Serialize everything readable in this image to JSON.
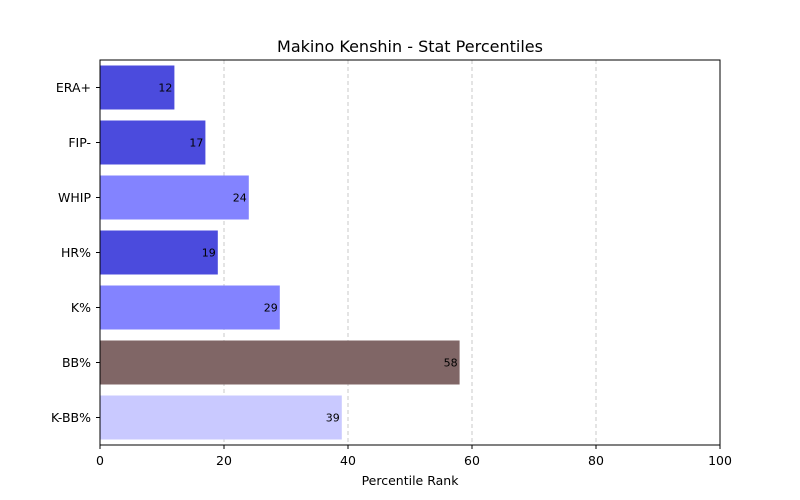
{
  "chart_data": {
    "type": "bar",
    "orientation": "horizontal",
    "title": "Makino Kenshin - Stat Percentiles",
    "xlabel": "Percentile Rank",
    "ylabel": "",
    "xlim": [
      0,
      100
    ],
    "xticks": [
      "0",
      "20",
      "40",
      "60",
      "80",
      "100"
    ],
    "grid": "vertical-dashed",
    "categories": [
      "ERA+",
      "FIP-",
      "WHIP",
      "HR%",
      "K%",
      "BB%",
      "K-BB%"
    ],
    "values": [
      12,
      17,
      24,
      19,
      29,
      58,
      39
    ],
    "colors": [
      "#4b4bdd",
      "#4b4bdd",
      "#8383ff",
      "#4b4bdd",
      "#8383ff",
      "#806666",
      "#c9c9ff"
    ]
  }
}
